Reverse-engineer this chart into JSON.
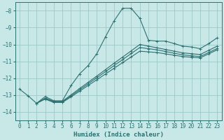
{
  "xlabel": "Humidex (Indice chaleur)",
  "bg_color": "#c8e8e8",
  "grid_color": "#a0c8c8",
  "line_color": "#2e7070",
  "xlim": [
    -0.5,
    23.5
  ],
  "ylim": [
    -14.5,
    -7.5
  ],
  "yticks": [
    -14,
    -13,
    -12,
    -11,
    -10,
    -9,
    -8
  ],
  "xticks": [
    0,
    1,
    2,
    3,
    4,
    5,
    6,
    7,
    8,
    9,
    10,
    11,
    12,
    13,
    14,
    15,
    16,
    17,
    18,
    19,
    20,
    21,
    22,
    23
  ],
  "main_x": [
    0,
    1,
    2,
    3,
    4,
    5,
    6,
    7,
    8,
    9,
    10,
    11,
    12,
    13,
    14,
    15,
    16,
    17,
    18,
    19,
    20,
    21,
    22,
    23
  ],
  "main_y": [
    -12.65,
    -13.05,
    -13.5,
    -13.1,
    -13.35,
    -13.35,
    -12.45,
    -11.75,
    -11.25,
    -10.55,
    -9.55,
    -8.6,
    -7.85,
    -7.85,
    -8.45,
    -9.75,
    -9.8,
    -9.8,
    -9.95,
    -10.1,
    -10.15,
    -10.25,
    -9.95,
    -9.6
  ],
  "line2_x": [
    2,
    3,
    4,
    5,
    6,
    7,
    8,
    9,
    10,
    11,
    12,
    13,
    14,
    15,
    16,
    17,
    18,
    19,
    20,
    21,
    22,
    23
  ],
  "line2_y": [
    -13.5,
    -13.2,
    -13.38,
    -13.38,
    -13.0,
    -12.62,
    -12.25,
    -11.88,
    -11.5,
    -11.12,
    -10.75,
    -10.38,
    -10.0,
    -10.1,
    -10.2,
    -10.3,
    -10.4,
    -10.5,
    -10.55,
    -10.6,
    -10.35,
    -10.1
  ],
  "line3_x": [
    2,
    3,
    4,
    5,
    6,
    7,
    8,
    9,
    10,
    11,
    12,
    13,
    14,
    15,
    16,
    17,
    18,
    19,
    20,
    21,
    22,
    23
  ],
  "line3_y": [
    -13.5,
    -13.22,
    -13.42,
    -13.42,
    -13.06,
    -12.7,
    -12.34,
    -11.98,
    -11.62,
    -11.26,
    -10.9,
    -10.54,
    -10.18,
    -10.25,
    -10.32,
    -10.42,
    -10.52,
    -10.62,
    -10.67,
    -10.72,
    -10.48,
    -10.24
  ],
  "line4_x": [
    2,
    3,
    4,
    5,
    6,
    7,
    8,
    9,
    10,
    11,
    12,
    13,
    14,
    15,
    16,
    17,
    18,
    19,
    20,
    21,
    22,
    23
  ],
  "line4_y": [
    -13.5,
    -13.25,
    -13.45,
    -13.45,
    -13.12,
    -12.78,
    -12.44,
    -12.1,
    -11.76,
    -11.42,
    -11.08,
    -10.74,
    -10.4,
    -10.44,
    -10.48,
    -10.56,
    -10.64,
    -10.72,
    -10.76,
    -10.8,
    -10.56,
    -10.32
  ]
}
